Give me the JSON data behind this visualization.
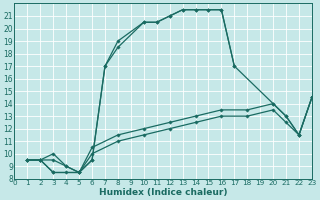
{
  "xlabel": "Humidex (Indice chaleur)",
  "bg_color": "#c6e8e8",
  "grid_color": "#aad4d4",
  "line_color": "#1a6b62",
  "xlim": [
    0,
    23
  ],
  "ylim": [
    8,
    22
  ],
  "xticks": [
    0,
    1,
    2,
    3,
    4,
    5,
    6,
    7,
    8,
    9,
    10,
    11,
    12,
    13,
    14,
    15,
    16,
    17,
    18,
    19,
    20,
    21,
    22,
    23
  ],
  "yticks": [
    8,
    9,
    10,
    11,
    12,
    13,
    14,
    15,
    16,
    17,
    18,
    19,
    20,
    21
  ],
  "curve_main": {
    "x": [
      1,
      2,
      3,
      5,
      6,
      7,
      8,
      10,
      11,
      12,
      13,
      14,
      15,
      16,
      17
    ],
    "y": [
      9.5,
      9.5,
      8.5,
      8.5,
      9.5,
      17.0,
      19.0,
      20.5,
      20.5,
      21.0,
      21.5,
      21.5,
      21.5,
      21.5,
      17.0
    ]
  },
  "curve_arc2": {
    "x": [
      1,
      2,
      3,
      4,
      5,
      6,
      7,
      8,
      10,
      11,
      12,
      13,
      14,
      15,
      16,
      17,
      20,
      21,
      22,
      23
    ],
    "y": [
      9.5,
      9.5,
      8.5,
      8.5,
      8.5,
      9.5,
      17.0,
      18.5,
      20.5,
      20.5,
      21.0,
      21.5,
      21.5,
      21.5,
      21.5,
      17.0,
      14.0,
      13.0,
      11.5,
      14.5
    ]
  },
  "curve_lin1": {
    "x": [
      1,
      2,
      3,
      4,
      5,
      6,
      8,
      10,
      12,
      14,
      16,
      18,
      20,
      21,
      22,
      23
    ],
    "y": [
      9.5,
      9.5,
      9.5,
      9.0,
      8.5,
      10.0,
      11.0,
      11.5,
      12.0,
      12.5,
      13.0,
      13.0,
      13.5,
      12.5,
      11.5,
      14.5
    ]
  },
  "curve_lin2": {
    "x": [
      1,
      2,
      3,
      4,
      5,
      6,
      8,
      10,
      12,
      14,
      16,
      18,
      20,
      21,
      22,
      23
    ],
    "y": [
      9.5,
      9.5,
      10.0,
      9.0,
      8.5,
      10.5,
      11.5,
      12.0,
      12.5,
      13.0,
      13.5,
      13.5,
      14.0,
      13.0,
      11.5,
      14.5
    ]
  }
}
